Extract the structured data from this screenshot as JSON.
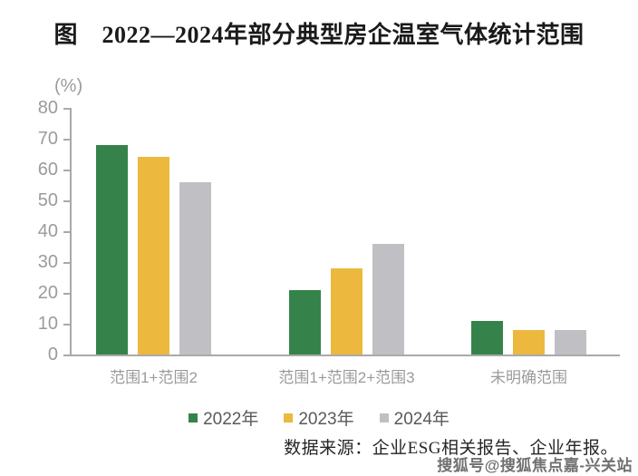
{
  "chart_data": {
    "type": "bar",
    "title": "图　2022—2024年部分典型房企温室气体统计范围",
    "ylabel": "(%)",
    "xlabel": "",
    "categories": [
      "范围1+范围2",
      "范围1+范围2+范围3",
      "未明确范围"
    ],
    "series": [
      {
        "name": "2022年",
        "color": "#35834B",
        "values": [
          68,
          21,
          11
        ]
      },
      {
        "name": "2023年",
        "color": "#ECB93E",
        "values": [
          64,
          28,
          8
        ]
      },
      {
        "name": "2024年",
        "color": "#C0C0C4",
        "values": [
          56,
          36,
          8
        ]
      }
    ],
    "ylim": [
      0,
      80
    ],
    "yticks": [
      0,
      10,
      20,
      30,
      40,
      50,
      60,
      70,
      80
    ],
    "grid": false,
    "legend_position": "bottom"
  },
  "source_note": "数据来源：企业ESG相关报告、企业年报。",
  "watermark": "搜狐号@搜狐焦点嘉-兴关站",
  "colors": {
    "axis": "#a9a9a9",
    "tick_label": "#9b9b9b",
    "legend_text": "#595959",
    "title_text": "#1a1a1a",
    "source_text": "#262626",
    "watermark_text": "#707070",
    "series_2022": "#35834B",
    "series_2023": "#ECB93E",
    "series_2024": "#C0C0C4"
  }
}
